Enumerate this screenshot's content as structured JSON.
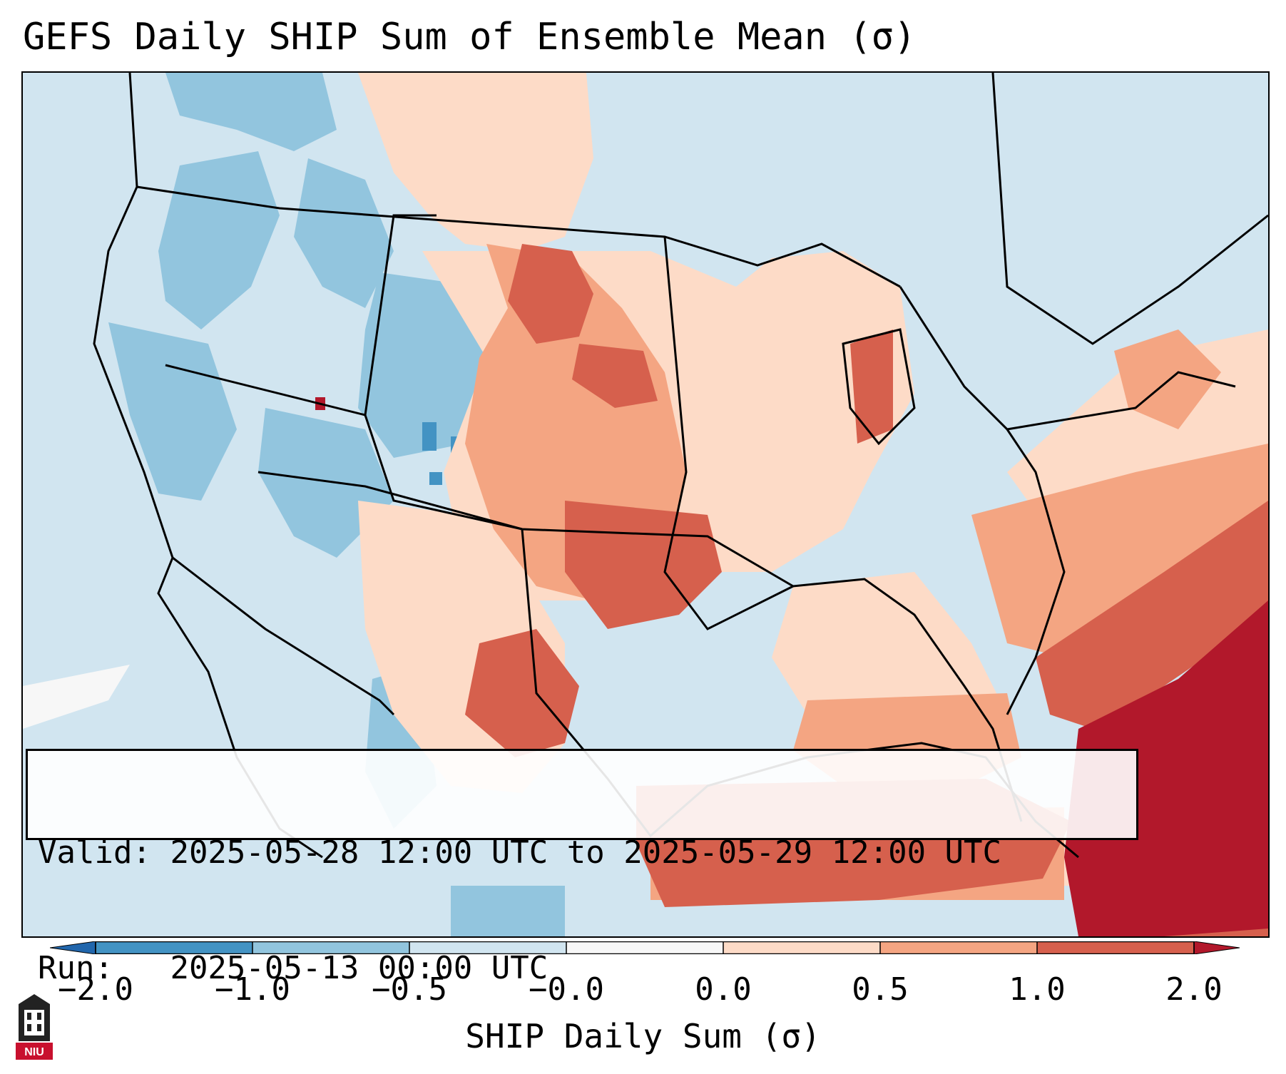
{
  "title": "GEFS Daily SHIP Sum of Ensemble Mean (σ)",
  "info": {
    "valid_label": "Valid:",
    "valid_value": "2025-05-28 12:00 UTC to 2025-05-29 12:00 UTC",
    "run_label": "Run:",
    "run_value": "2025-05-13 00:00 UTC"
  },
  "colorbar": {
    "label": "SHIP Daily Sum (σ)",
    "ticks": [
      "−2.0",
      "−1.0",
      "−0.5",
      "−0.0",
      "0.0",
      "0.5",
      "1.0",
      "2.0"
    ],
    "colors": [
      "#4393c3",
      "#92c5de",
      "#d1e5f0",
      "#f7f7f7",
      "#fddbc7",
      "#f4a582",
      "#d6604d",
      "#b2182b"
    ],
    "extend_low_color": "#2166ac",
    "extend_high_color": "#b2182b"
  },
  "logo": {
    "text": "NIU",
    "color": "#c8102e"
  },
  "map": {
    "ocean_color": "#d1e5f0",
    "boundary_color": "#000000"
  }
}
